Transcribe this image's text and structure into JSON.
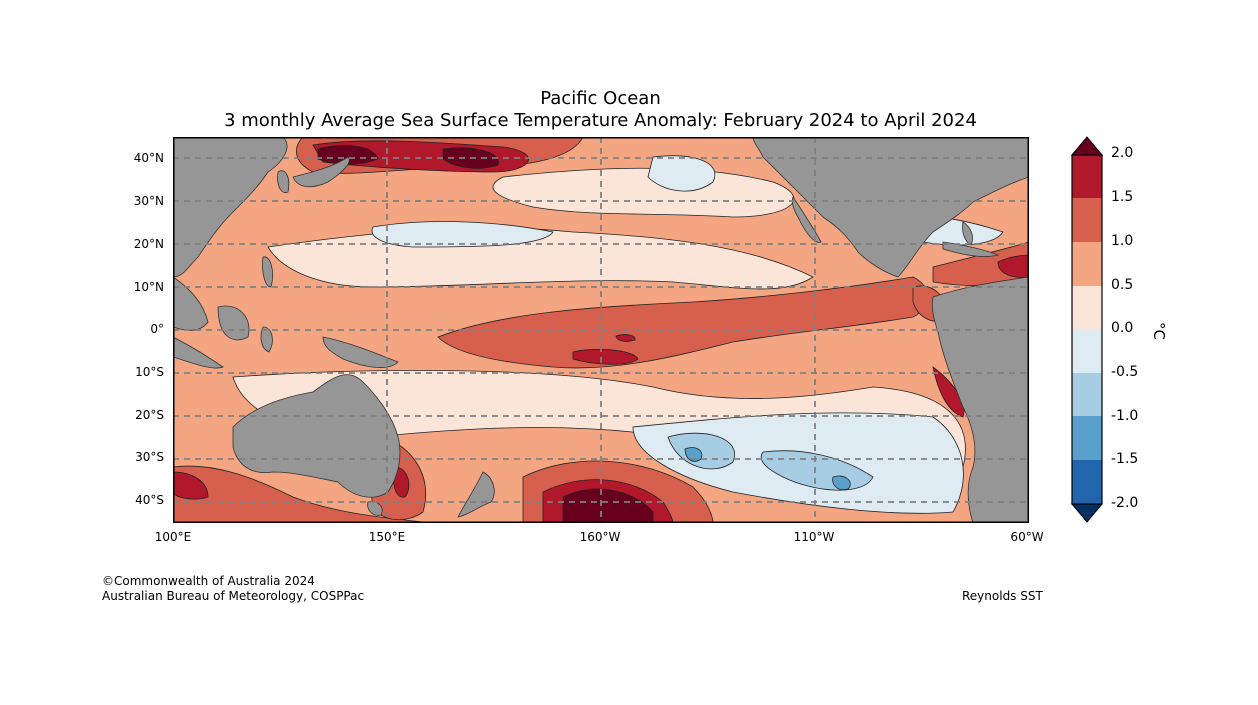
{
  "title": {
    "region": "Pacific Ocean",
    "subtitle": "3 monthly Average Sea Surface Temperature Anomaly: February 2024 to April 2024"
  },
  "map": {
    "lat_labels": [
      "40°N",
      "30°N",
      "20°N",
      "10°N",
      "0°",
      "10°S",
      "20°S",
      "30°S",
      "40°S"
    ],
    "lon_labels": [
      "100°E",
      "150°E",
      "160°W",
      "110°W",
      "60°W"
    ],
    "lat_values": [
      40,
      30,
      20,
      10,
      0,
      -10,
      -20,
      -30,
      -40
    ],
    "lon_values": [
      100,
      150,
      200,
      250,
      300
    ],
    "lat_range": [
      -45,
      45
    ],
    "lon_range": [
      100,
      300
    ]
  },
  "colorbar": {
    "unit": "°C",
    "tick_labels": [
      "2.0",
      "1.5",
      "1.0",
      "0.5",
      "0.0",
      "-0.5",
      "-1.0",
      "-1.5",
      "-2.0"
    ],
    "levels": [
      2.0,
      1.5,
      1.0,
      0.5,
      0.0,
      -0.5,
      -1.0,
      -1.5,
      -2.0
    ],
    "colors": [
      "#b2182b",
      "#d6604d",
      "#f4a582",
      "#fbe4d8",
      "#deebf3",
      "#a6cde3",
      "#5aa0cc",
      "#2166ac"
    ],
    "over_color": "#67001f",
    "under_color": "#053061",
    "land_color": "#969696"
  },
  "footer": {
    "copyright": "©Commonwealth of Australia 2024",
    "agency": "Australian Bureau of Meteorology, COSPPac",
    "source": "Reynolds SST"
  }
}
